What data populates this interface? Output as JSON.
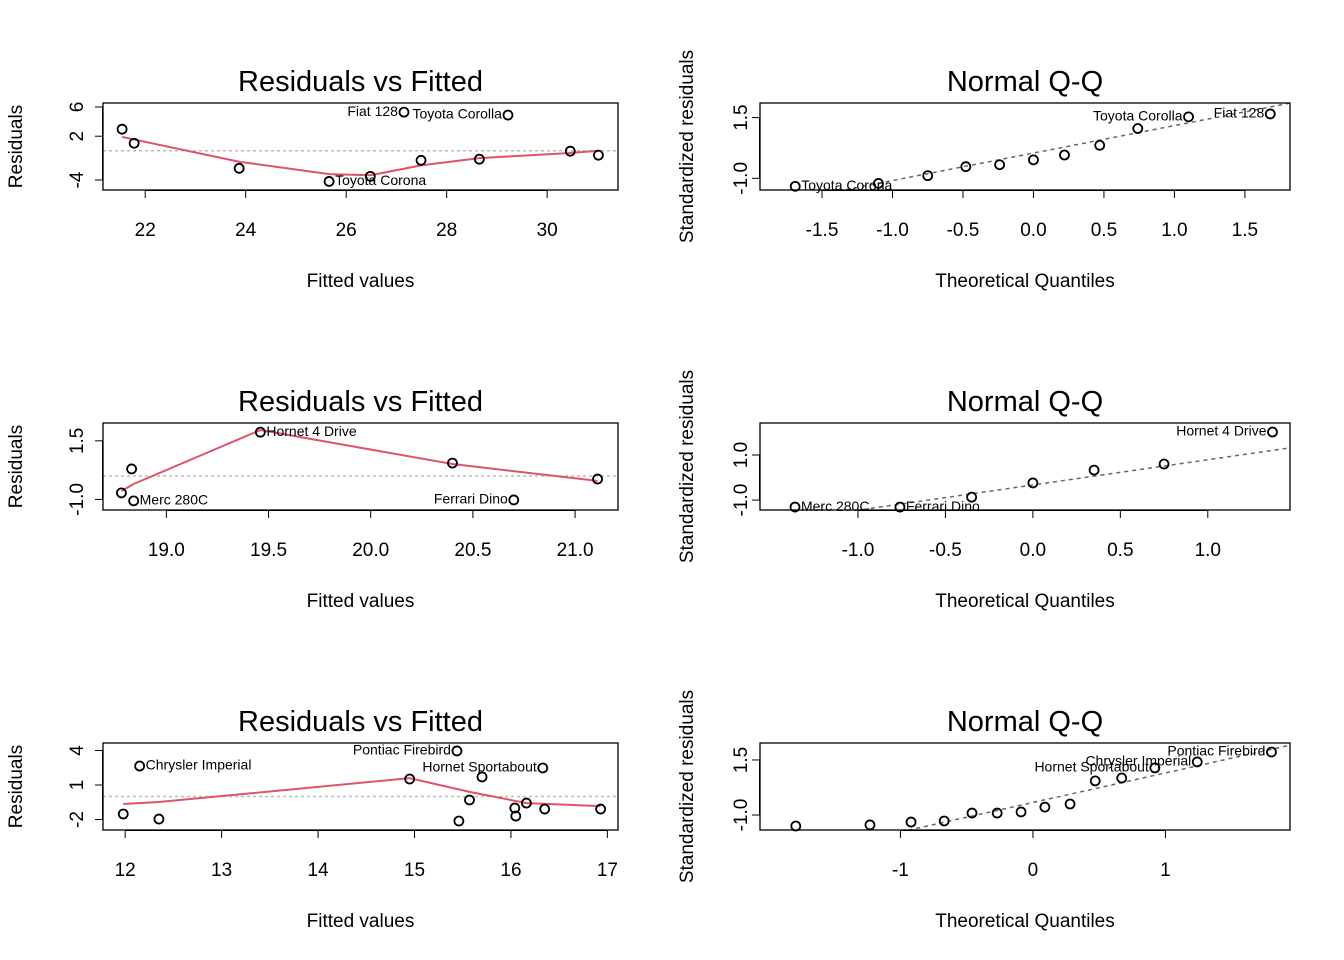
{
  "chart_data": [
    {
      "type": "scatter",
      "title": "Residuals vs Fitted",
      "x_label": "Fitted values",
      "y_label": "Residuals",
      "xlim": [
        21.16,
        31.41
      ],
      "ylim": [
        -5.37,
        6.55
      ],
      "xticks": [
        22,
        24,
        26,
        28,
        30
      ],
      "yticks": [
        -4,
        2,
        6
      ],
      "x": [
        21.54,
        21.78,
        23.87,
        25.66,
        26.48,
        27.15,
        27.49,
        28.65,
        29.22,
        30.46,
        31.02
      ],
      "values": [
        2.96,
        1.04,
        -2.4,
        -4.2,
        -3.5,
        5.3,
        -1.3,
        -1.15,
        4.9,
        -0.05,
        -0.6
      ],
      "point_labels": [
        null,
        null,
        null,
        "Toyota Corona",
        null,
        "Fiat 128",
        null,
        null,
        "Toyota Corolla",
        null,
        null
      ],
      "hline": 0,
      "hline_color": "#bbbbbb",
      "smooth": {
        "color": "#DF536B",
        "x": [
          21.54,
          23.87,
          25.66,
          26.48,
          27.49,
          28.65,
          30.46,
          31.02
        ],
        "values": [
          1.9,
          -1.5,
          -3.2,
          -3.35,
          -2.0,
          -1.0,
          -0.3,
          0.0
        ]
      }
    },
    {
      "type": "scatter",
      "title": "Normal Q-Q",
      "x_label": "Theoretical Quantiles",
      "y_label": "Standardized residuals",
      "xlim": [
        -1.94,
        1.82
      ],
      "ylim": [
        -1.48,
        2.1
      ],
      "xticks": [
        -1.5,
        {
          "value": -1,
          "label": "-1.0"
        },
        -0.5,
        {
          "value": 0,
          "label": "0.0"
        },
        0.5,
        {
          "value": 1,
          "label": "1.0"
        },
        1.5
      ],
      "yticks": [
        {
          "value": -1,
          "label": "-1.0"
        },
        1.5
      ],
      "x": [
        -1.69,
        -1.1,
        -0.75,
        -0.48,
        -0.24,
        0,
        0.22,
        0.47,
        0.74,
        1.1,
        1.68
      ],
      "values": [
        -1.33,
        -1.21,
        -0.89,
        -0.52,
        -0.44,
        -0.24,
        -0.04,
        0.36,
        1.05,
        1.53,
        1.65
      ],
      "point_labels": [
        "Toyota Corona",
        null,
        null,
        null,
        null,
        null,
        null,
        null,
        null,
        "Toyota Corolla",
        "Fiat 128"
      ],
      "qqline": {
        "intercept": 0.04,
        "slope": 1.13,
        "color": "#666666"
      }
    },
    {
      "type": "scatter",
      "title": "Residuals vs Fitted",
      "x_label": "Fitted values",
      "y_label": "Residuals",
      "xlim": [
        18.69,
        21.21
      ],
      "ylim": [
        -1.45,
        2.26
      ],
      "xticks": [
        {
          "value": 19,
          "label": "19.0"
        },
        19.5,
        {
          "value": 20,
          "label": "20.0"
        },
        20.5,
        {
          "value": 21,
          "label": "21.0"
        }
      ],
      "yticks": [
        {
          "value": -1,
          "label": "-1.0"
        },
        1.5
      ],
      "x": [
        18.78,
        18.83,
        18.84,
        19.46,
        20.4,
        20.7,
        21.11
      ],
      "values": [
        -0.72,
        0.3,
        -1.06,
        1.87,
        0.55,
        -1.02,
        -0.13
      ],
      "point_labels": [
        null,
        null,
        "Merc 280C",
        "Hornet 4 Drive",
        null,
        "Ferrari Dino",
        null
      ],
      "hline": 0,
      "hline_color": "#bbbbbb",
      "smooth": {
        "color": "#DF536B",
        "x": [
          18.78,
          18.84,
          19.46,
          20.4,
          21.11
        ],
        "values": [
          -0.64,
          -0.34,
          1.96,
          0.51,
          -0.21
        ]
      }
    },
    {
      "type": "scatter",
      "title": "Normal Q-Q",
      "x_label": "Theoretical Quantiles",
      "y_label": "Standardized residuals",
      "xlim": [
        -1.56,
        1.47
      ],
      "ylim": [
        -1.44,
        2.42
      ],
      "xticks": [
        {
          "value": -1,
          "label": "-1.0"
        },
        -0.5,
        {
          "value": 0,
          "label": "0.0"
        },
        0.5,
        {
          "value": 1,
          "label": "1.0"
        }
      ],
      "yticks": [
        {
          "value": -1,
          "label": "-1.0"
        },
        {
          "value": 1,
          "label": "1.0"
        }
      ],
      "x": [
        -1.36,
        -0.76,
        -0.35,
        0,
        0.35,
        0.75,
        1.37
      ],
      "values": [
        -1.31,
        -1.31,
        -0.87,
        -0.24,
        0.33,
        0.6,
        2.02
      ],
      "point_labels": [
        "Merc 280C",
        "Ferrari Dino",
        null,
        null,
        null,
        null,
        "Hornet 4 Drive"
      ],
      "qqline": {
        "intercept": -0.33,
        "slope": 1.12,
        "color": "#666666"
      }
    },
    {
      "type": "scatter",
      "title": "Residuals vs Fitted",
      "x_label": "Fitted values",
      "y_label": "Residuals",
      "xlim": [
        11.77,
        17.11
      ],
      "ylim": [
        -2.91,
        4.65
      ],
      "xticks": [
        12,
        13,
        14,
        15,
        16,
        17
      ],
      "yticks": [
        -2,
        1,
        4
      ],
      "x": [
        11.98,
        12.35,
        12.15,
        14.95,
        15.44,
        15.46,
        15.57,
        15.7,
        16.04,
        16.05,
        16.16,
        16.33,
        16.35,
        16.93
      ],
      "values": [
        -1.52,
        -1.96,
        2.65,
        1.52,
        3.96,
        -2.13,
        -0.3,
        1.7,
        -1.0,
        -1.7,
        -0.57,
        2.48,
        -1.09,
        -1.09
      ],
      "point_labels": [
        null,
        null,
        "Chrysler Imperial",
        null,
        "Pontiac Firebird",
        null,
        null,
        null,
        null,
        null,
        null,
        "Hornet Sportabout",
        null,
        null
      ],
      "hline": 0,
      "hline_color": "#bbbbbb",
      "smooth": {
        "color": "#DF536B",
        "x": [
          11.98,
          12.35,
          14.95,
          15.57,
          16.16,
          16.93
        ],
        "values": [
          -0.65,
          -0.48,
          1.6,
          0.4,
          -0.57,
          -0.83
        ]
      }
    },
    {
      "type": "scatter",
      "title": "Normal Q-Q",
      "x_label": "Theoretical Quantiles",
      "y_label": "Standardized residuals",
      "xlim": [
        -2.06,
        1.94
      ],
      "ylim": [
        -1.68,
        2.27
      ],
      "xticks": [
        -1,
        0,
        1
      ],
      "yticks": [
        {
          "value": -1,
          "label": "-1.0"
        },
        1.5
      ],
      "x": [
        -1.79,
        -1.23,
        -0.92,
        -0.67,
        -0.46,
        -0.27,
        -0.09,
        0.09,
        0.28,
        0.47,
        0.67,
        0.92,
        1.24,
        1.8
      ],
      "values": [
        -1.5,
        -1.45,
        -1.32,
        -1.27,
        -0.91,
        -0.91,
        -0.86,
        -0.64,
        -0.5,
        0.55,
        0.68,
        1.14,
        1.41,
        1.86
      ],
      "point_labels": [
        null,
        null,
        null,
        null,
        null,
        null,
        null,
        null,
        null,
        null,
        null,
        "Hornet Sportabout",
        "Chrysler Imperial",
        "Pontiac Firebird"
      ],
      "qqline": {
        "intercept": -0.43,
        "slope": 1.34,
        "color": "#666666"
      }
    }
  ]
}
